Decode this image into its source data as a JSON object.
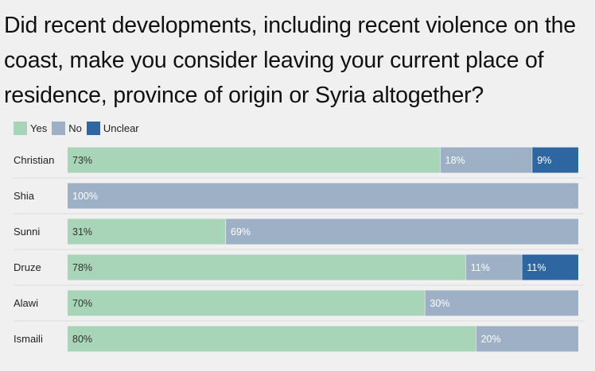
{
  "title": "Did recent developments, including recent violence on the coast, make you consider leaving your current place of residence, province of origin or Syria altogether?",
  "legend": [
    {
      "label": "Yes",
      "color": "#a8d5b7"
    },
    {
      "label": "No",
      "color": "#9db0c6"
    },
    {
      "label": "Unclear",
      "color": "#2e66a1"
    }
  ],
  "chart_data": {
    "type": "bar",
    "orientation": "horizontal",
    "stacked": true,
    "unit": "%",
    "xlim": [
      0,
      100
    ],
    "grid": false,
    "legend_position": "top-left",
    "categories": [
      "Christian",
      "Shia",
      "Sunni",
      "Druze",
      "Alawi",
      "Ismaili"
    ],
    "series": [
      {
        "name": "Yes",
        "color": "#a8d5b7",
        "label_color": "#333333",
        "values": [
          73,
          0,
          31,
          78,
          70,
          80
        ]
      },
      {
        "name": "No",
        "color": "#9db0c6",
        "label_color": "#ffffff",
        "values": [
          18,
          100,
          69,
          11,
          30,
          20
        ]
      },
      {
        "name": "Unclear",
        "color": "#2e66a1",
        "label_color": "#ffffff",
        "values": [
          9,
          0,
          0,
          11,
          0,
          0
        ]
      }
    ],
    "value_labels": [
      [
        "73%",
        "18%",
        "9%"
      ],
      [
        "",
        "100%",
        ""
      ],
      [
        "31%",
        "69%",
        ""
      ],
      [
        "78%",
        "11%",
        "11%"
      ],
      [
        "70%",
        "30%",
        ""
      ],
      [
        "80%",
        "20%",
        ""
      ]
    ]
  }
}
